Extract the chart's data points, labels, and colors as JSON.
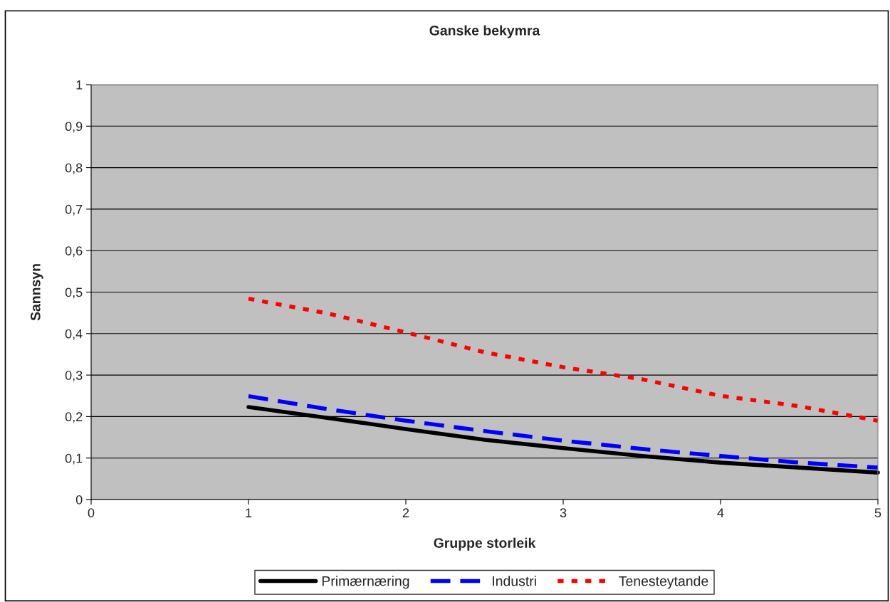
{
  "chart_data": {
    "type": "line",
    "title": "Ganske bekymra",
    "xlabel": "Gruppe storleik",
    "ylabel": "Sannsyn",
    "x": [
      1,
      1.5,
      2,
      2.5,
      3,
      3.5,
      4,
      4.5,
      5
    ],
    "series": [
      {
        "name": "Primærnæring",
        "color": "#000000",
        "line_style": "solid",
        "values": [
          0.223,
          0.197,
          0.17,
          0.144,
          0.124,
          0.105,
          0.089,
          0.077,
          0.065
        ]
      },
      {
        "name": "Industri",
        "color": "#0000ff",
        "line_style": "dashed",
        "values": [
          0.249,
          0.218,
          0.19,
          0.165,
          0.142,
          0.122,
          0.105,
          0.089,
          0.077
        ]
      },
      {
        "name": "Tenesteytande",
        "color": "#ff0000",
        "line_style": "dotted",
        "values": [
          0.484,
          0.449,
          0.403,
          0.355,
          0.319,
          0.29,
          0.25,
          0.225,
          0.19
        ]
      }
    ],
    "xlim": [
      0,
      5
    ],
    "xticks": [
      0,
      1,
      2,
      3,
      4,
      5
    ],
    "ylim": [
      0,
      1
    ],
    "yticks": [
      0,
      {
        "value": 0.1,
        "label": "0,1"
      },
      {
        "value": 0.2,
        "label": "0,2"
      },
      {
        "value": 0.3,
        "label": "0,3"
      },
      {
        "value": 0.4,
        "label": "0,4"
      },
      {
        "value": 0.5,
        "label": "0,5"
      },
      {
        "value": 0.6,
        "label": "0,6"
      },
      {
        "value": 0.7,
        "label": "0,7"
      },
      {
        "value": 0.8,
        "label": "0,8"
      },
      {
        "value": 0.9,
        "label": "0,9"
      },
      1
    ],
    "grid": "y",
    "legend": "bottom",
    "marker": "none"
  }
}
